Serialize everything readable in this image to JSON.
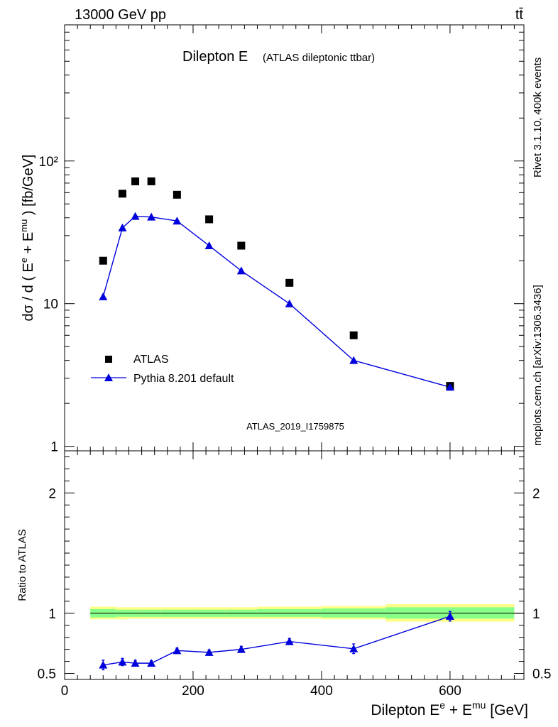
{
  "header": {
    "energy_label": "13000 GeV pp",
    "process_label": "tt̄"
  },
  "side_labels": {
    "rivet": "Rivet 3.1.10,  400k events",
    "mcplots": "mcplots.cern.ch [arXiv:1306.3436]"
  },
  "colors": {
    "mc": "#0000dd",
    "band_outer": "#ffff88",
    "band_inner": "#88ff88",
    "data": "#000000",
    "watermark": "#999999"
  },
  "chart_data": [
    {
      "type": "scatter",
      "panel": "main",
      "title": "Dilepton E",
      "subtitle": "(ATLAS dileptonic ttbar)",
      "watermark": "ATLAS_2019_I1759875",
      "ylabel": "dσ / d ( E^e + E^mu ) [fb/GeV]",
      "yscale": "log",
      "xlim": [
        0,
        715
      ],
      "ylim": [
        0.93,
        900
      ],
      "ytick_labels": [
        "1",
        "10",
        "10²"
      ],
      "legend_position": "bottom-left",
      "series": [
        {
          "name": "ATLAS",
          "marker": "square",
          "x": [
            60,
            90,
            110,
            135,
            175,
            225,
            275,
            350,
            450,
            600
          ],
          "y": [
            20,
            59,
            72,
            72,
            58,
            39,
            25.5,
            14,
            6,
            2.65
          ]
        },
        {
          "name": "Pythia 8.201 default",
          "marker": "triangle",
          "line": true,
          "x": [
            60,
            90,
            110,
            135,
            175,
            225,
            275,
            350,
            450,
            600
          ],
          "y": [
            11.2,
            34,
            41,
            40.5,
            38,
            25.5,
            17,
            10,
            4,
            2.6
          ]
        }
      ]
    },
    {
      "type": "scatter",
      "panel": "ratio",
      "xlabel": "Dilepton E^e + E^mu [GeV]",
      "ylabel": "Ratio to ATLAS",
      "xlim": [
        0,
        715
      ],
      "ylim": [
        0.45,
        2.35
      ],
      "yticks": [
        0.5,
        1,
        2
      ],
      "ytick_labels": [
        "0.5",
        "1",
        "2"
      ],
      "xtick_labels": [
        "0",
        "200",
        "400",
        "600"
      ],
      "reference_line": 1,
      "band": {
        "edges": [
          40,
          80,
          100,
          120,
          150,
          200,
          250,
          300,
          400,
          500,
          700
        ],
        "outer_low": [
          0.95,
          0.95,
          0.955,
          0.955,
          0.955,
          0.955,
          0.955,
          0.955,
          0.95,
          0.93
        ],
        "outer_high": [
          1.055,
          1.05,
          1.05,
          1.05,
          1.05,
          1.05,
          1.05,
          1.055,
          1.06,
          1.075
        ],
        "inner_low": [
          0.965,
          0.97,
          0.97,
          0.97,
          0.97,
          0.97,
          0.97,
          0.97,
          0.965,
          0.955
        ],
        "inner_high": [
          1.035,
          1.03,
          1.03,
          1.03,
          1.03,
          1.03,
          1.03,
          1.035,
          1.04,
          1.05
        ]
      },
      "series": [
        {
          "name": "Pythia 8.201 default",
          "marker": "triangle",
          "line": true,
          "x": [
            60,
            90,
            110,
            135,
            175,
            225,
            275,
            350,
            450,
            600
          ],
          "y": [
            0.57,
            0.595,
            0.585,
            0.585,
            0.69,
            0.675,
            0.7,
            0.765,
            0.705,
            0.975
          ],
          "err": [
            0.04,
            0.03,
            0.025,
            0.02,
            0.02,
            0.02,
            0.025,
            0.025,
            0.04,
            0.04
          ]
        }
      ]
    }
  ]
}
